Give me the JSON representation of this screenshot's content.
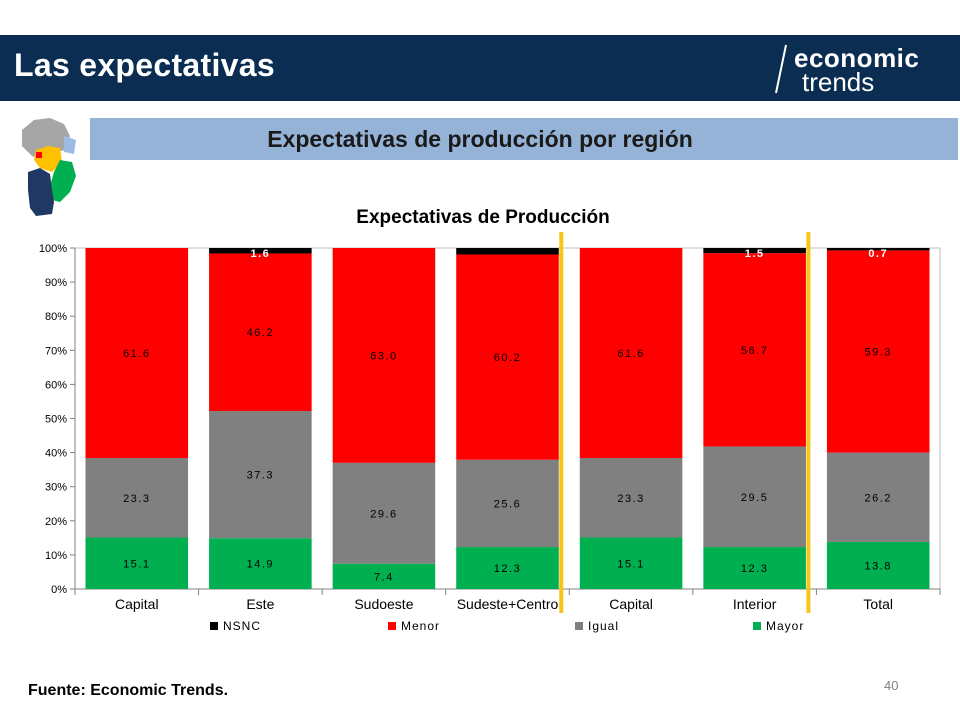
{
  "header": {
    "title": "Las expectativas"
  },
  "logo": {
    "line1": "economic",
    "line2": "trends"
  },
  "subtitle": "Expectativas de producción por región",
  "footer": {
    "source": "Fuente: Economic Trends.",
    "page": "40"
  },
  "colors": {
    "header_bg": "#0b2d52",
    "subtitle_bg": "#95b3d7",
    "nsnc": "#000000",
    "menor": "#ff0000",
    "igual": "#808080",
    "mayor": "#00b050",
    "separator": "#f5c518"
  },
  "chart_data": {
    "type": "bar",
    "stacked": true,
    "title": "Expectativas de Producción",
    "categories": [
      "Capital",
      "Este",
      "Sudoeste",
      "Sudeste+Centro",
      "Capital",
      "Interior",
      "Total"
    ],
    "yticks": [
      "0%",
      "10%",
      "20%",
      "30%",
      "40%",
      "50%",
      "60%",
      "70%",
      "80%",
      "90%",
      "100%"
    ],
    "ylim": [
      0,
      100
    ],
    "legend_position": "bottom",
    "series": [
      {
        "name": "Mayor",
        "color": "#00b050",
        "values": [
          15.1,
          14.9,
          7.4,
          12.3,
          15.1,
          12.3,
          13.8
        ],
        "labels": [
          "15.1",
          "14.9",
          "7.4",
          "12.3",
          "15.1",
          "12.3",
          "13.8"
        ]
      },
      {
        "name": "Igual",
        "color": "#808080",
        "values": [
          23.3,
          37.3,
          29.6,
          25.6,
          23.3,
          29.5,
          26.2
        ],
        "labels": [
          "23.3",
          "37.3",
          "29.6",
          "25.6",
          "23.3",
          "29.5",
          "26.2"
        ]
      },
      {
        "name": "Menor",
        "color": "#ff0000",
        "values": [
          61.6,
          46.2,
          63.0,
          60.2,
          61.6,
          56.7,
          59.3
        ],
        "labels": [
          "61.6",
          "46.2",
          "63.0",
          "60.2",
          "61.6",
          "56.7",
          "59.3"
        ]
      },
      {
        "name": "NSNC",
        "color": "#000000",
        "values": [
          0,
          1.6,
          0,
          1.9,
          0,
          1.5,
          0.7
        ],
        "labels": [
          "",
          "1.6",
          "",
          "",
          "",
          "1.5",
          "0.7"
        ]
      }
    ],
    "legend_order": [
      "NSNC",
      "Menor",
      "Igual",
      "Mayor"
    ]
  }
}
